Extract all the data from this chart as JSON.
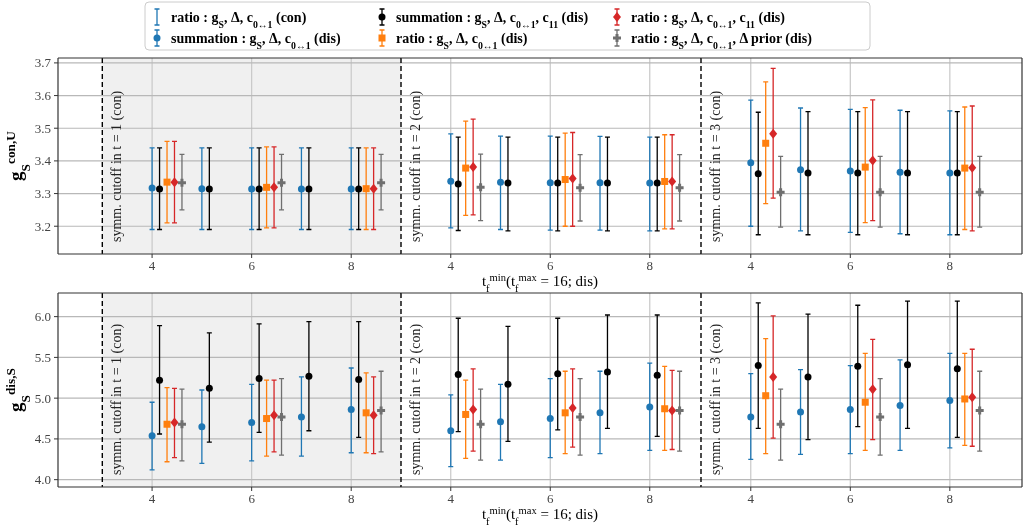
{
  "chart_data": [
    {
      "type": "scatter",
      "ylabel": "g$_{S}$$^{con,U}$",
      "xlim": [
        2.11,
        9
      ],
      "ylim": [
        3.115,
        3.715
      ],
      "xticks": [
        4,
        6,
        8
      ],
      "yticks": [
        3.2,
        3.3,
        3.4,
        3.5,
        3.6,
        3.7
      ],
      "grid": true,
      "legend": "top",
      "ref_lines": [
        {
          "axis": "x",
          "value": 3,
          "line_style": "dashed"
        }
      ],
      "annotations": [
        "symm. cutoff in t = 1 (con)"
      ],
      "bands": [
        {
          "axis": "x",
          "from": 3,
          "to": 9,
          "color": "#f0f0f0"
        }
      ],
      "series": [
        {
          "name": "ratio : g$_{S}$, Δ, c$_{0↔1}$ (con)",
          "color": "#1f77b4",
          "marker": "none"
        },
        {
          "name": "summation : g$_{S}$, Δ, c$_{0↔1}$ (dis)",
          "color": "#1f77b4",
          "marker": "circle",
          "x": [
            4,
            5,
            6,
            7,
            8
          ],
          "values": [
            3.317,
            3.315,
            3.314,
            3.314,
            3.314
          ],
          "errors": [
            [
              3.19,
              3.44
            ],
            [
              3.19,
              3.44
            ],
            [
              3.19,
              3.44
            ],
            [
              3.19,
              3.44
            ],
            [
              3.19,
              3.44
            ]
          ]
        },
        {
          "name": "summation : g$_{S}$, Δ, c$_{0↔1}$, c$_{11}$ (dis)",
          "color": "#000000",
          "marker": "circle",
          "x": [
            4.15,
            5.15,
            6.15,
            7.15,
            8.15
          ],
          "values": [
            3.314,
            3.314,
            3.314,
            3.314,
            3.314
          ],
          "errors": [
            [
              3.19,
              3.44
            ],
            [
              3.19,
              3.44
            ],
            [
              3.19,
              3.44
            ],
            [
              3.19,
              3.44
            ],
            [
              3.19,
              3.44
            ]
          ]
        },
        {
          "name": "ratio : g$_{S}$, Δ, c$_{0↔1}$ (dis)",
          "color": "#ff7f0e",
          "marker": "square",
          "x": [
            4.3,
            6.3,
            8.3
          ],
          "values": [
            3.335,
            3.319,
            3.315
          ],
          "errors": [
            [
              3.21,
              3.46
            ],
            [
              3.195,
              3.443
            ],
            [
              3.19,
              3.44
            ]
          ]
        },
        {
          "name": "ratio : g$_{S}$, Δ, c$_{0↔1}$, c$_{11}$ (dis)",
          "color": "#d62728",
          "marker": "diamond",
          "x": [
            4.45,
            6.45,
            8.45
          ],
          "values": [
            3.335,
            3.319,
            3.315
          ],
          "errors": [
            [
              3.21,
              3.46
            ],
            [
              3.195,
              3.443
            ],
            [
              3.19,
              3.44
            ]
          ]
        },
        {
          "name": "ratio : g$_{S}$, Δ, c$_{0↔1}$, Δ prior (dis)",
          "color": "#6f6f6f",
          "marker": "cross",
          "x": [
            4.6,
            6.6,
            8.6
          ],
          "values": [
            3.333,
            3.333,
            3.333
          ],
          "errors": [
            [
              3.25,
              3.42
            ],
            [
              3.25,
              3.42
            ],
            [
              3.25,
              3.42
            ]
          ]
        }
      ]
    },
    {
      "type": "scatter",
      "xlabel": "t$_{f}$$^{min}$(t$_{f}$$^{max}$ = 16; dis)",
      "xlim": [
        3,
        9.03
      ],
      "ylim": [
        3.115,
        3.715
      ],
      "xticks": [
        4,
        6,
        8
      ],
      "yticks": [
        3.2,
        3.3,
        3.4,
        3.5,
        3.6,
        3.7
      ],
      "grid": true,
      "tick_labels": "x",
      "ref_lines": [
        {
          "axis": "x",
          "value": 3,
          "line_style": "dashed"
        }
      ],
      "annotations": [
        "symm. cutoff in t = 2 (con)"
      ],
      "series": [
        {
          "color": "#1f77b4",
          "marker": "circle",
          "x": [
            4,
            5,
            6,
            7,
            8
          ],
          "values": [
            3.338,
            3.335,
            3.333,
            3.333,
            3.332
          ],
          "errors": [
            [
              3.195,
              3.483
            ],
            [
              3.19,
              3.476
            ],
            [
              3.188,
              3.476
            ],
            [
              3.188,
              3.475
            ],
            [
              3.186,
              3.473
            ]
          ]
        },
        {
          "color": "#000000",
          "marker": "circle",
          "x": [
            4.15,
            5.15,
            6.15,
            7.15,
            8.15
          ],
          "values": [
            3.329,
            3.332,
            3.332,
            3.332,
            3.332
          ],
          "errors": [
            [
              3.187,
              3.473
            ],
            [
              3.186,
              3.473
            ],
            [
              3.186,
              3.473
            ],
            [
              3.186,
              3.473
            ],
            [
              3.186,
              3.473
            ]
          ]
        },
        {
          "color": "#ff7f0e",
          "marker": "square",
          "x": [
            4.3,
            6.3,
            8.3
          ],
          "values": [
            3.378,
            3.343,
            3.337
          ],
          "errors": [
            [
              3.233,
              3.522
            ],
            [
              3.2,
              3.485
            ],
            [
              3.192,
              3.48
            ]
          ]
        },
        {
          "color": "#d62728",
          "marker": "diamond",
          "x": [
            4.45,
            6.45,
            8.45
          ],
          "values": [
            3.381,
            3.346,
            3.337
          ],
          "errors": [
            [
              3.235,
              3.528
            ],
            [
              3.2,
              3.487
            ],
            [
              3.192,
              3.48
            ]
          ]
        },
        {
          "color": "#6f6f6f",
          "marker": "cross",
          "x": [
            4.6,
            6.6,
            8.6
          ],
          "values": [
            3.319,
            3.318,
            3.318
          ],
          "errors": [
            [
              3.217,
              3.421
            ],
            [
              3.216,
              3.419
            ],
            [
              3.216,
              3.419
            ]
          ]
        }
      ]
    },
    {
      "type": "scatter",
      "xlim": [
        3,
        9.45
      ],
      "ylim": [
        3.115,
        3.715
      ],
      "xticks": [
        4,
        6,
        8
      ],
      "yticks": [
        3.2,
        3.3,
        3.4,
        3.5,
        3.6,
        3.7
      ],
      "grid": true,
      "tick_labels": "x",
      "ref_lines": [
        {
          "axis": "x",
          "value": 3,
          "line_style": "dashed"
        }
      ],
      "annotations": [
        "symm. cutoff in t = 3 (con)"
      ],
      "series": [
        {
          "color": "#1f77b4",
          "marker": "circle",
          "x": [
            4,
            5,
            6,
            7,
            8
          ],
          "values": [
            3.394,
            3.373,
            3.369,
            3.365,
            3.363
          ],
          "errors": [
            [
              3.2,
              3.586
            ],
            [
              3.186,
              3.562
            ],
            [
              3.181,
              3.558
            ],
            [
              3.177,
              3.555
            ],
            [
              3.174,
              3.553
            ]
          ]
        },
        {
          "color": "#000000",
          "marker": "circle",
          "x": [
            4.15,
            5.15,
            6.15,
            7.15,
            8.15
          ],
          "values": [
            3.361,
            3.363,
            3.363,
            3.363,
            3.363
          ],
          "errors": [
            [
              3.174,
              3.549
            ],
            [
              3.174,
              3.551
            ],
            [
              3.174,
              3.551
            ],
            [
              3.174,
              3.551
            ],
            [
              3.174,
              3.551
            ]
          ]
        },
        {
          "color": "#ff7f0e",
          "marker": "square",
          "x": [
            4.3,
            6.3,
            8.3
          ],
          "values": [
            3.454,
            3.381,
            3.378
          ],
          "errors": [
            [
              3.269,
              3.642
            ],
            [
              3.211,
              3.563
            ],
            [
              3.19,
              3.565
            ]
          ]
        },
        {
          "color": "#d62728",
          "marker": "diamond",
          "x": [
            4.45,
            6.45,
            8.45
          ],
          "values": [
            3.483,
            3.401,
            3.379
          ],
          "errors": [
            [
              3.286,
              3.683
            ],
            [
              3.217,
              3.587
            ],
            [
              3.186,
              3.568
            ]
          ]
        },
        {
          "color": "#6f6f6f",
          "marker": "cross",
          "x": [
            4.6,
            6.6,
            8.6
          ],
          "values": [
            3.304,
            3.304,
            3.304
          ],
          "errors": [
            [
              3.197,
              3.414
            ],
            [
              3.197,
              3.414
            ],
            [
              3.197,
              3.414
            ]
          ]
        }
      ]
    },
    {
      "type": "scatter",
      "ylabel": "g$_{S}$$^{dis,S}$",
      "xlim": [
        2.11,
        9
      ],
      "ylim": [
        3.91,
        6.29
      ],
      "xticks": [
        4,
        6,
        8
      ],
      "yticks": [
        {
          "value": 4,
          "label": "4.0"
        },
        4.5,
        {
          "value": 5,
          "label": "5.0"
        },
        5.5,
        {
          "value": 6,
          "label": "6.0"
        }
      ],
      "grid": true,
      "ref_lines": [
        {
          "axis": "x",
          "value": 3,
          "line_style": "dashed"
        }
      ],
      "annotations": [
        "symm. cutoff in t = 1 (con)"
      ],
      "bands": [
        {
          "axis": "x",
          "from": 3,
          "to": 9,
          "color": "#f0f0f0"
        }
      ],
      "series": [
        {
          "color": "#1f77b4",
          "marker": "circle",
          "x": [
            4,
            5,
            6,
            7,
            8
          ],
          "values": [
            4.54,
            4.65,
            4.7,
            4.77,
            4.86
          ],
          "errors": [
            [
              4.12,
              4.95
            ],
            [
              4.2,
              5.1
            ],
            [
              4.23,
              5.17
            ],
            [
              4.29,
              5.26
            ],
            [
              4.33,
              5.37
            ]
          ]
        },
        {
          "color": "#000000",
          "marker": "circle",
          "x": [
            4.15,
            5.15,
            6.15,
            7.15,
            8.15
          ],
          "values": [
            5.22,
            5.12,
            5.24,
            5.27,
            5.23
          ],
          "errors": [
            [
              4.56,
              5.89
            ],
            [
              4.46,
              5.8
            ],
            [
              4.58,
              5.91
            ],
            [
              4.6,
              5.94
            ],
            [
              4.52,
              5.94
            ]
          ]
        },
        {
          "color": "#ff7f0e",
          "marker": "square",
          "x": [
            4.3,
            6.3,
            8.3
          ],
          "values": [
            4.68,
            4.75,
            4.82
          ],
          "errors": [
            [
              4.22,
              5.13
            ],
            [
              4.29,
              5.22
            ],
            [
              4.33,
              5.31
            ]
          ]
        },
        {
          "color": "#d62728",
          "marker": "diamond",
          "x": [
            4.45,
            6.45,
            8.45
          ],
          "values": [
            4.7,
            4.79,
            4.79
          ],
          "errors": [
            [
              4.27,
              5.12
            ],
            [
              4.34,
              5.22
            ],
            [
              4.32,
              5.26
            ]
          ]
        },
        {
          "color": "#6f6f6f",
          "marker": "cross",
          "x": [
            4.6,
            6.6,
            8.6
          ],
          "values": [
            4.68,
            4.77,
            4.85
          ],
          "errors": [
            [
              4.23,
              5.11
            ],
            [
              4.3,
              5.24
            ],
            [
              4.34,
              5.33
            ]
          ]
        }
      ]
    },
    {
      "type": "scatter",
      "xlabel": "t$_{f}$$^{min}$(t$_{f}$$^{max}$ = 16; dis)",
      "xlim": [
        3,
        9.03
      ],
      "ylim": [
        3.91,
        6.29
      ],
      "xticks": [
        4,
        6,
        8
      ],
      "yticks": [
        4,
        4.5,
        5,
        5.5,
        6
      ],
      "grid": true,
      "tick_labels": "x",
      "ref_lines": [
        {
          "axis": "x",
          "value": 3,
          "line_style": "dashed"
        }
      ],
      "annotations": [
        "symm. cutoff in t = 2 (con)"
      ],
      "series": [
        {
          "color": "#1f77b4",
          "marker": "circle",
          "x": [
            4,
            5,
            6,
            7,
            8
          ],
          "values": [
            4.6,
            4.71,
            4.75,
            4.82,
            4.89
          ],
          "errors": [
            [
              4.16,
              5.04
            ],
            [
              4.24,
              5.17
            ],
            [
              4.27,
              5.24
            ],
            [
              4.32,
              5.33
            ],
            [
              4.36,
              5.43
            ]
          ]
        },
        {
          "color": "#000000",
          "marker": "circle",
          "x": [
            4.15,
            5.15,
            6.15,
            7.15,
            8.15
          ],
          "values": [
            5.29,
            5.17,
            5.3,
            5.32,
            5.28
          ],
          "errors": [
            [
              4.59,
              5.98
            ],
            [
              4.47,
              5.88
            ],
            [
              4.61,
              5.98
            ],
            [
              4.63,
              6.02
            ],
            [
              4.53,
              6.02
            ]
          ]
        },
        {
          "color": "#ff7f0e",
          "marker": "square",
          "x": [
            4.3,
            6.3,
            8.3
          ],
          "values": [
            4.8,
            4.82,
            4.87
          ],
          "errors": [
            [
              4.26,
              5.22
            ],
            [
              4.32,
              5.33
            ],
            [
              4.36,
              5.39
            ]
          ]
        },
        {
          "color": "#d62728",
          "marker": "diamond",
          "x": [
            4.45,
            6.45,
            8.45
          ],
          "values": [
            4.86,
            4.88,
            4.85
          ],
          "errors": [
            [
              4.35,
              5.36
            ],
            [
              4.4,
              5.36
            ],
            [
              4.37,
              5.34
            ]
          ]
        },
        {
          "color": "#6f6f6f",
          "marker": "cross",
          "x": [
            4.6,
            6.6,
            8.6
          ],
          "values": [
            4.68,
            4.77,
            4.85
          ],
          "errors": [
            [
              4.24,
              5.11
            ],
            [
              4.3,
              5.24
            ],
            [
              4.35,
              5.33
            ]
          ]
        }
      ]
    },
    {
      "type": "scatter",
      "xlim": [
        3,
        9.45
      ],
      "ylim": [
        3.91,
        6.29
      ],
      "xticks": [
        4,
        6,
        8
      ],
      "yticks": [
        4,
        4.5,
        5,
        5.5,
        6
      ],
      "grid": true,
      "tick_labels": "x",
      "ref_lines": [
        {
          "axis": "x",
          "value": 3,
          "line_style": "dashed"
        }
      ],
      "annotations": [
        "symm. cutoff in t = 3 (con)"
      ],
      "series": [
        {
          "color": "#1f77b4",
          "marker": "circle",
          "x": [
            4,
            5,
            6,
            7,
            8
          ],
          "values": [
            4.77,
            4.83,
            4.86,
            4.91,
            4.97
          ],
          "errors": [
            [
              4.25,
              5.3
            ],
            [
              4.31,
              5.35
            ],
            [
              4.32,
              5.4
            ],
            [
              4.36,
              5.47
            ],
            [
              4.39,
              5.55
            ]
          ]
        },
        {
          "color": "#000000",
          "marker": "circle",
          "x": [
            4.15,
            5.15,
            6.15,
            7.15,
            8.15
          ],
          "values": [
            5.4,
            5.26,
            5.39,
            5.41,
            5.36
          ],
          "errors": [
            [
              4.63,
              6.17
            ],
            [
              4.49,
              6.03
            ],
            [
              4.65,
              6.14
            ],
            [
              4.63,
              6.19
            ],
            [
              4.52,
              6.19
            ]
          ]
        },
        {
          "color": "#ff7f0e",
          "marker": "square",
          "x": [
            4.3,
            6.3,
            8.3
          ],
          "values": [
            5.03,
            4.95,
            4.99
          ],
          "errors": [
            [
              4.32,
              5.73
            ],
            [
              4.36,
              5.55
            ],
            [
              4.42,
              5.55
            ]
          ]
        },
        {
          "color": "#d62728",
          "marker": "diamond",
          "x": [
            4.45,
            6.45,
            8.45
          ],
          "values": [
            5.26,
            5.11,
            5.01
          ],
          "errors": [
            [
              4.51,
              6.01
            ],
            [
              4.49,
              5.72
            ],
            [
              4.41,
              5.6
            ]
          ]
        },
        {
          "color": "#6f6f6f",
          "marker": "cross",
          "x": [
            4.6,
            6.6,
            8.6
          ],
          "values": [
            4.68,
            4.77,
            4.85
          ],
          "errors": [
            [
              4.24,
              5.11
            ],
            [
              4.3,
              5.24
            ],
            [
              4.35,
              5.33
            ]
          ]
        }
      ]
    }
  ]
}
